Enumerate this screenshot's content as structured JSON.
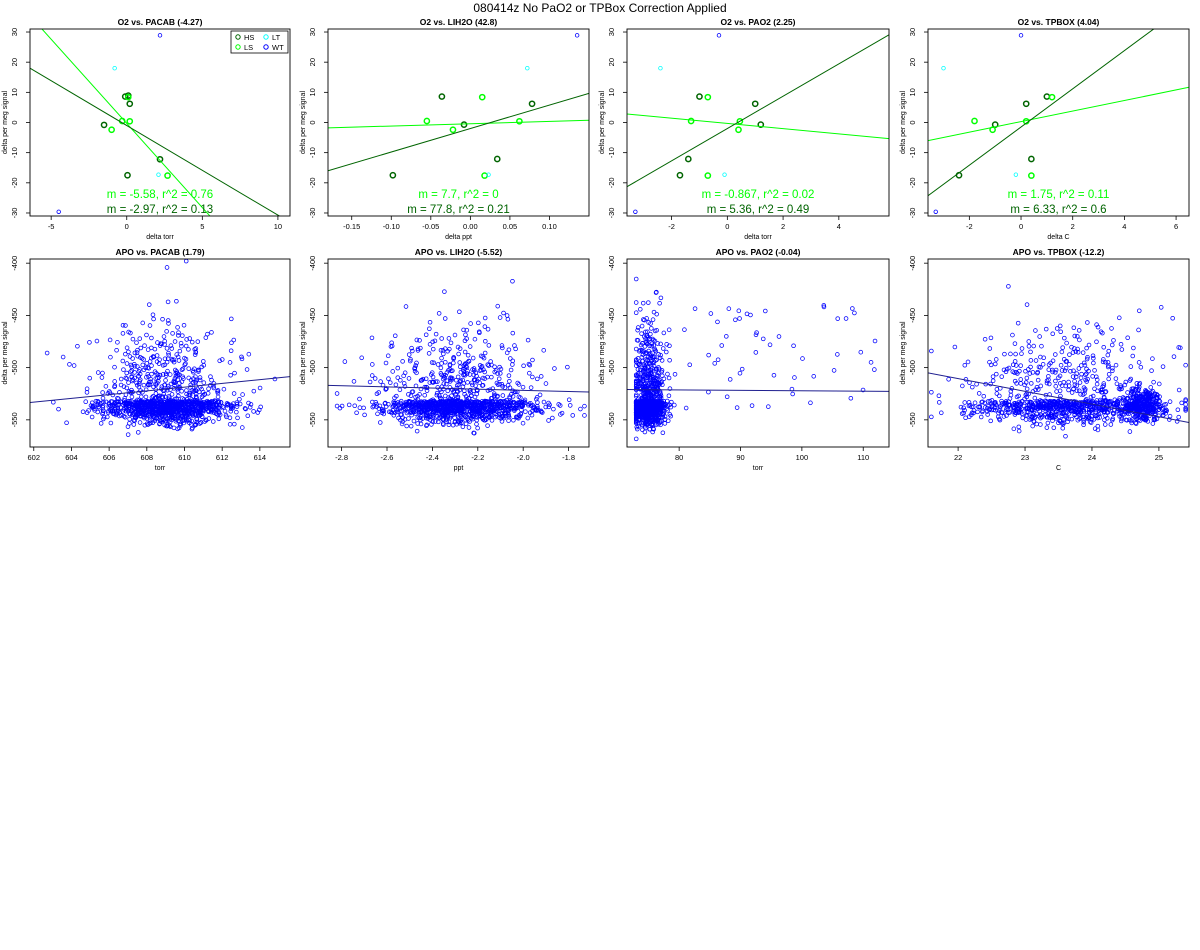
{
  "figure": {
    "title": "080414z   No PaO2 or TPBox Correction Applied"
  },
  "chart_data": [
    {
      "type": "scatter",
      "title": "O2 vs. PACAB (-4.27)",
      "xlabel": "delta torr",
      "ylabel": "delta per meg signal",
      "xlim": [
        -6.4,
        10.8
      ],
      "ylim": [
        -31,
        31
      ],
      "xticks": [
        -5,
        0,
        5,
        10
      ],
      "yticks": [
        -30,
        -20,
        -10,
        0,
        10,
        20,
        30
      ],
      "legend": {
        "position": "top-right",
        "entries": [
          {
            "label": "HS",
            "color": "#006400"
          },
          {
            "label": "LT",
            "color": "#00FFFF"
          },
          {
            "label": "LS",
            "color": "#00FF00"
          },
          {
            "label": "WT",
            "color": "#0000FF"
          }
        ]
      },
      "series": [
        {
          "name": "HS",
          "color": "#006400",
          "x": [
            -1.5,
            -0.1,
            0.1,
            0.2,
            0.05,
            2.2
          ],
          "y": [
            -0.8,
            8.6,
            8.9,
            6.2,
            -17.5,
            -12.2
          ]
        },
        {
          "name": "LS",
          "color": "#00FF00",
          "x": [
            -1.0,
            -0.3,
            0.1,
            0.2,
            2.7
          ],
          "y": [
            -2.4,
            0.5,
            8.4,
            0.4,
            -17.6
          ]
        },
        {
          "name": "LT",
          "color": "#00FFFF",
          "x": [
            -0.8,
            2.1
          ],
          "y": [
            18.0,
            -17.3
          ]
        },
        {
          "name": "WT",
          "color": "#0000FF",
          "x": [
            2.2,
            -4.5
          ],
          "y": [
            28.9,
            -29.6
          ]
        }
      ],
      "fits": [
        {
          "color": "#00FF00",
          "slope": -5.58,
          "intercept": -0.3,
          "label": "m = -5.58, r^2 = 0.76"
        },
        {
          "color": "#006400",
          "slope": -2.97,
          "intercept": -1.0,
          "label": "m = -2.97, r^2 = 0.13"
        }
      ]
    },
    {
      "type": "scatter",
      "title": "O2 vs. LIH2O (42.8)",
      "xlabel": "delta ppt",
      "ylabel": "delta per meg signal",
      "xlim": [
        -0.18,
        0.15
      ],
      "ylim": [
        -31,
        31
      ],
      "xticks": [
        -0.15,
        -0.1,
        -0.05,
        0.0,
        0.05,
        0.1
      ],
      "xtick_labels": [
        "-0.15",
        "-0.10",
        "-0.05",
        "0.00",
        "0.05",
        "0.10"
      ],
      "yticks": [
        -30,
        -20,
        -10,
        0,
        10,
        20,
        30
      ],
      "series": [
        {
          "name": "HS",
          "color": "#006400",
          "x": [
            -0.098,
            -0.036,
            -0.008,
            0.034,
            0.078
          ],
          "y": [
            -17.5,
            8.6,
            -0.7,
            -12.1,
            6.2
          ]
        },
        {
          "name": "LS",
          "color": "#00FF00",
          "x": [
            -0.055,
            -0.022,
            0.015,
            0.018,
            0.062
          ],
          "y": [
            0.5,
            -2.4,
            8.4,
            -17.6,
            0.4
          ]
        },
        {
          "name": "LT",
          "color": "#00FFFF",
          "x": [
            0.023,
            0.072
          ],
          "y": [
            -17.3,
            18.0
          ]
        },
        {
          "name": "WT",
          "color": "#0000FF",
          "x": [
            0.135
          ],
          "y": [
            28.9
          ]
        }
      ],
      "fits": [
        {
          "color": "#00FF00",
          "slope": 7.7,
          "intercept": -0.4,
          "label": "m = 7.7, r^2 = 0"
        },
        {
          "color": "#006400",
          "slope": 77.8,
          "intercept": -2.0,
          "label": "m = 77.8, r^2 = 0.21"
        }
      ]
    },
    {
      "type": "scatter",
      "title": "O2 vs. PAO2 (2.25)",
      "xlabel": "delta torr",
      "ylabel": "delta per meg signal",
      "xlim": [
        -3.6,
        5.8
      ],
      "ylim": [
        -31,
        31
      ],
      "xticks": [
        -2,
        0,
        2,
        4
      ],
      "yticks": [
        -30,
        -20,
        -10,
        0,
        10,
        20,
        30
      ],
      "series": [
        {
          "name": "HS",
          "color": "#006400",
          "x": [
            -1.7,
            -1.4,
            -1.0,
            1.0,
            1.2
          ],
          "y": [
            -17.5,
            -12.1,
            8.6,
            6.2,
            -0.7
          ]
        },
        {
          "name": "LS",
          "color": "#00FF00",
          "x": [
            -1.3,
            -0.7,
            -0.7,
            0.4,
            0.45
          ],
          "y": [
            0.5,
            8.4,
            -17.6,
            -2.4,
            0.4
          ]
        },
        {
          "name": "LT",
          "color": "#00FFFF",
          "x": [
            -2.4,
            -0.1
          ],
          "y": [
            18.0,
            -17.3
          ]
        },
        {
          "name": "WT",
          "color": "#0000FF",
          "x": [
            -0.3,
            -3.3
          ],
          "y": [
            28.9,
            -29.6
          ]
        }
      ],
      "fits": [
        {
          "color": "#00FF00",
          "slope": -0.867,
          "intercept": -0.3,
          "label": "m = -0.867, r^2 = 0.02"
        },
        {
          "color": "#006400",
          "slope": 5.36,
          "intercept": -2.0,
          "label": "m = 5.36, r^2 = 0.49"
        }
      ]
    },
    {
      "type": "scatter",
      "title": "O2 vs. TPBOX (4.04)",
      "xlabel": "delta C",
      "ylabel": "delta per meg signal",
      "xlim": [
        -3.6,
        6.5
      ],
      "ylim": [
        -31,
        31
      ],
      "xticks": [
        -2,
        0,
        2,
        4,
        6
      ],
      "yticks": [
        -30,
        -20,
        -10,
        0,
        10,
        20,
        30
      ],
      "series": [
        {
          "name": "HS",
          "color": "#006400",
          "x": [
            -2.4,
            -1.0,
            0.2,
            0.4,
            1.0
          ],
          "y": [
            -17.5,
            -0.7,
            6.2,
            -12.1,
            8.6
          ]
        },
        {
          "name": "LS",
          "color": "#00FF00",
          "x": [
            -1.8,
            -1.1,
            0.2,
            0.4,
            1.2
          ],
          "y": [
            0.5,
            -2.4,
            0.4,
            -17.6,
            8.4
          ]
        },
        {
          "name": "LT",
          "color": "#00FFFF",
          "x": [
            -3.0,
            -0.2
          ],
          "y": [
            18.0,
            -17.3
          ]
        },
        {
          "name": "WT",
          "color": "#0000FF",
          "x": [
            0.0,
            -3.3
          ],
          "y": [
            28.9,
            -29.6
          ]
        }
      ],
      "fits": [
        {
          "color": "#00FF00",
          "slope": 1.75,
          "intercept": 0.3,
          "label": "m = 1.75, r^2 = 0.11"
        },
        {
          "color": "#006400",
          "slope": 6.33,
          "intercept": -1.5,
          "label": "m = 6.33, r^2 = 0.6"
        }
      ]
    },
    {
      "type": "scatter",
      "title": "APO vs. PACAB (1.79)",
      "xlabel": "torr",
      "ylabel": "delta per meg signal",
      "xlim": [
        601.8,
        615.6
      ],
      "ylim": [
        -576,
        -396
      ],
      "xticks": [
        602,
        604,
        606,
        608,
        610,
        612,
        614
      ],
      "yticks": [
        -550,
        -500,
        -450,
        -400
      ],
      "cloud": {
        "n": 1250,
        "x_center": 609,
        "x_spread": 1.8,
        "y_center": -532,
        "y_spread": 22,
        "y_min": -570,
        "y_max": -398,
        "x_min": 602.5,
        "x_max": 614.8
      },
      "fits": [
        {
          "color": "#1F1F8F",
          "slope": 1.79,
          "intercept": -533,
          "x_ref": 602
        }
      ]
    },
    {
      "type": "scatter",
      "title": "APO vs. LIH2O (-5.52)",
      "xlabel": "ppt",
      "ylabel": "delta per meg signal",
      "xlim": [
        -2.86,
        -1.71
      ],
      "ylim": [
        -576,
        -396
      ],
      "xticks": [
        -2.8,
        -2.6,
        -2.4,
        -2.2,
        -2.0,
        -1.8
      ],
      "xtick_labels": [
        "-2.8",
        "-2.6",
        "-2.4",
        "-2.2",
        "-2.0",
        "-1.8"
      ],
      "yticks": [
        -550,
        -500,
        -450,
        -400
      ],
      "cloud": {
        "n": 1250,
        "x_center": -2.28,
        "x_spread": 0.18,
        "y_center": -532,
        "y_spread": 22,
        "y_min": -570,
        "y_max": -398,
        "x_min": -2.82,
        "x_max": -1.73
      },
      "fits": [
        {
          "color": "#1F1F8F",
          "slope": -5.52,
          "intercept": -517,
          "x_ref": -2.86
        }
      ]
    },
    {
      "type": "scatter",
      "title": "APO vs. PAO2 (-0.04)",
      "xlabel": "torr",
      "ylabel": "delta per meg signal",
      "xlim": [
        71.5,
        114.2
      ],
      "ylim": [
        -576,
        -396
      ],
      "xticks": [
        80,
        90,
        100,
        110
      ],
      "yticks": [
        -550,
        -500,
        -450,
        -400
      ],
      "cloud": {
        "n": 1250,
        "x_center": 75,
        "x_spread": 1.3,
        "y_center": -532,
        "y_spread": 22,
        "y_min": -572,
        "y_max": -398,
        "x_min": 73.0,
        "x_max": 113.0,
        "tail": 0.05
      },
      "fits": [
        {
          "color": "#1F1F8F",
          "slope": -0.04,
          "intercept": -521,
          "x_ref": 71.5
        }
      ]
    },
    {
      "type": "scatter",
      "title": "APO vs. TPBOX (-12.2)",
      "xlabel": "C",
      "ylabel": "delta per meg signal",
      "xlim": [
        21.55,
        25.45
      ],
      "ylim": [
        -576,
        -396
      ],
      "xticks": [
        22,
        23,
        24,
        25
      ],
      "yticks": [
        -550,
        -500,
        -450,
        -400
      ],
      "cloud": {
        "n": 1250,
        "x_center": 23.6,
        "x_spread": 0.7,
        "y_center": -532,
        "y_spread": 22,
        "y_min": -570,
        "y_max": -398,
        "x_min": 21.6,
        "x_max": 25.4,
        "cluster": [
          24.75,
          -536
        ]
      },
      "fits": [
        {
          "color": "#1F1F8F",
          "slope": -12.2,
          "intercept": -505,
          "x_ref": 21.55
        }
      ]
    }
  ]
}
